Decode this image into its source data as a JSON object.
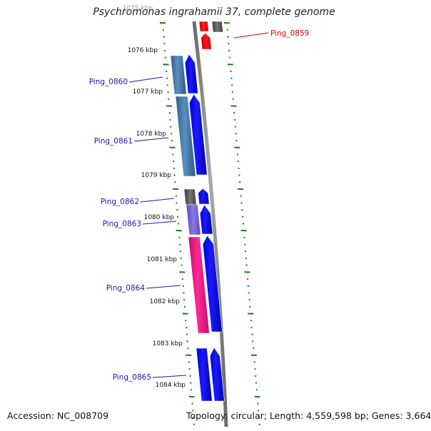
{
  "title": "Psychromonas ingrahamii 37, complete genome",
  "accession": "Accession: NC_008709",
  "topology": "Topology: circular; Length: 4,559,598 bp; Genes: 3,664",
  "colors": {
    "backbone": "#888888",
    "ticks": "#1e7a1e",
    "forward_gene": "#0000ff",
    "highlight": "#ff0000",
    "label": "#1a1aa6",
    "label_highlight": "#d40000"
  },
  "scale_labels": [
    "1075 kbp",
    "1076 kbp",
    "1077 kbp",
    "1078 kbp",
    "1079 kbp",
    "1080 kbp",
    "1081 kbp",
    "1082 kbp",
    "1083 kbp",
    "1084 kbp"
  ],
  "genes": [
    {
      "id": "Ping_0859",
      "label": "Ping_0859",
      "highlight": true
    },
    {
      "id": "Ping_0860",
      "label": "Ping_0860",
      "highlight": false
    },
    {
      "id": "Ping_0861",
      "label": "Ping_0861",
      "highlight": false
    },
    {
      "id": "Ping_0862",
      "label": "Ping_0862",
      "highlight": false
    },
    {
      "id": "Ping_0863",
      "label": "Ping_0863",
      "highlight": false
    },
    {
      "id": "Ping_0864",
      "label": "Ping_0864",
      "highlight": false
    },
    {
      "id": "Ping_0865",
      "label": "Ping_0865",
      "highlight": false
    }
  ]
}
